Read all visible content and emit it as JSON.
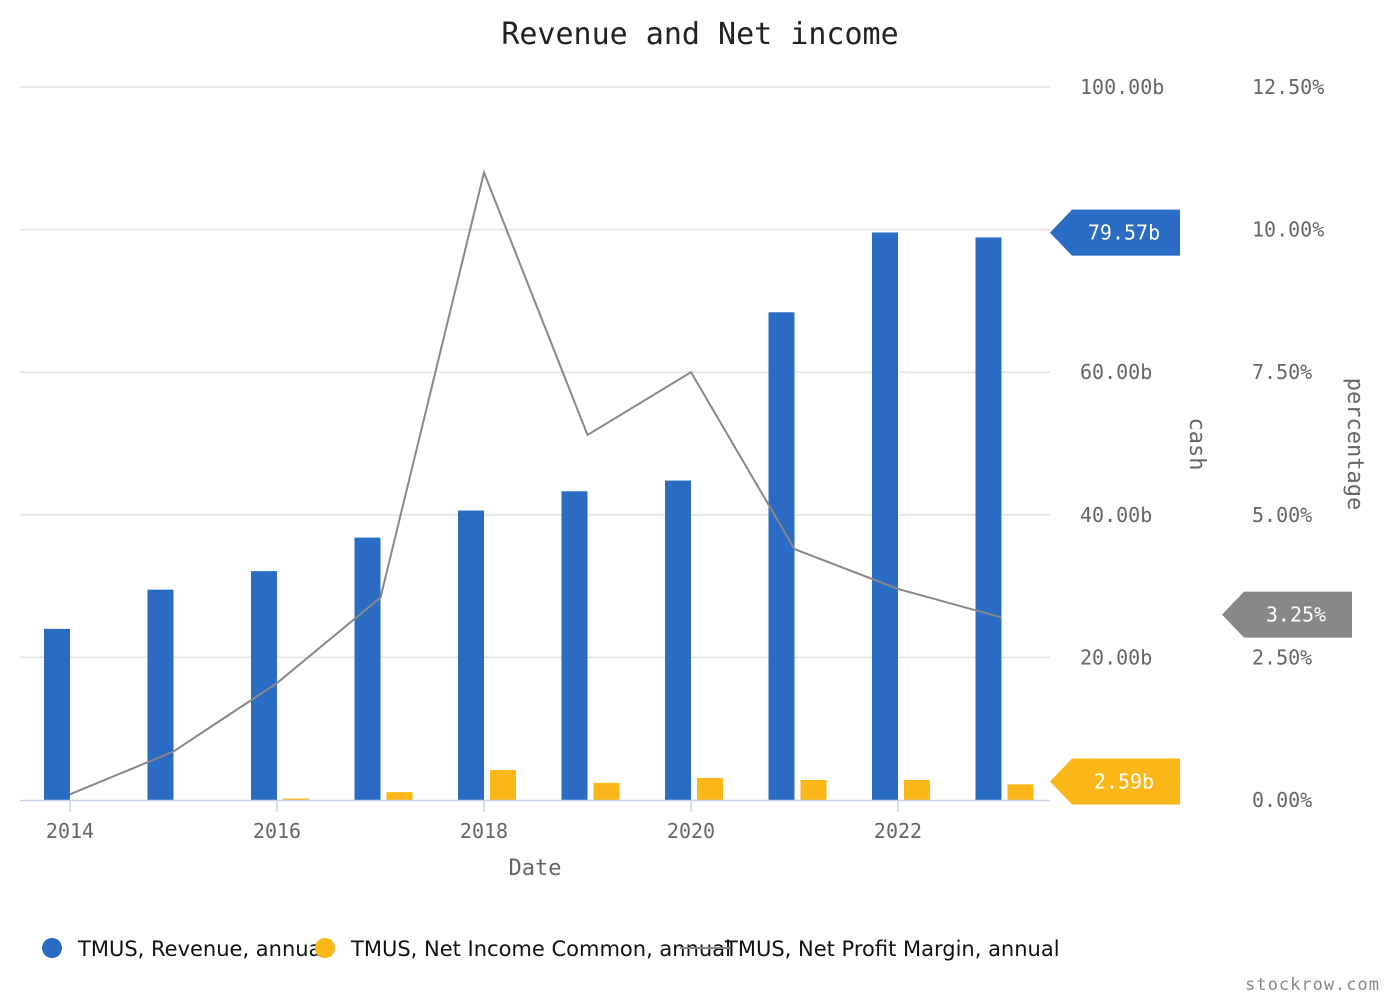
{
  "chart_data": {
    "type": "bar",
    "title": "Revenue and Net income",
    "xlabel": "Date",
    "ylabel_left": "cash",
    "ylabel_right": "percentage",
    "x_ticks": [
      "2014",
      "2016",
      "2018",
      "2020",
      "2022"
    ],
    "cash_ticks": [
      "20.00b",
      "40.00b",
      "60.00b",
      "100.00b"
    ],
    "pct_ticks": [
      "0.00%",
      "2.50%",
      "5.00%",
      "7.50%",
      "10.00%",
      "12.50%"
    ],
    "cash_ylim": [
      0,
      100
    ],
    "pct_ylim": [
      0,
      12.5
    ],
    "x": [
      2014,
      2015,
      2016,
      2017,
      2018,
      2019,
      2020,
      2021,
      2022,
      2023
    ],
    "series": [
      {
        "name": "TMUS, Revenue, annual",
        "kind": "bar",
        "axis": "cash",
        "unit": "b",
        "color": "#2a6bc3",
        "values": [
          24.0,
          29.5,
          32.1,
          36.8,
          40.6,
          43.3,
          44.8,
          68.4,
          79.6,
          78.9
        ]
      },
      {
        "name": "TMUS, Net Income Common, annual",
        "kind": "bar",
        "axis": "cash",
        "unit": "b",
        "color": "#fbb617",
        "values": [
          0.0,
          0.0,
          0.2,
          1.1,
          4.2,
          2.4,
          3.1,
          2.8,
          2.8,
          2.2
        ]
      },
      {
        "name": "TMUS, Net Profit Margin, annual",
        "kind": "line",
        "axis": "pct",
        "unit": "%",
        "color": "#888888",
        "values": [
          0.1,
          0.85,
          2.05,
          3.55,
          11.0,
          6.4,
          7.5,
          4.4,
          3.7,
          3.2
        ]
      }
    ],
    "flags": [
      {
        "label": "79.57b",
        "axis": "cash",
        "value": 79.57,
        "color": "#2a6bc3"
      },
      {
        "label": "2.59b",
        "axis": "cash",
        "value": 2.59,
        "color": "#fbb617"
      },
      {
        "label": "3.25%",
        "axis": "pct",
        "value": 3.25,
        "color": "#888888"
      }
    ],
    "grid": true,
    "legend_position": "bottom-left"
  },
  "credit": "stockrow.com"
}
